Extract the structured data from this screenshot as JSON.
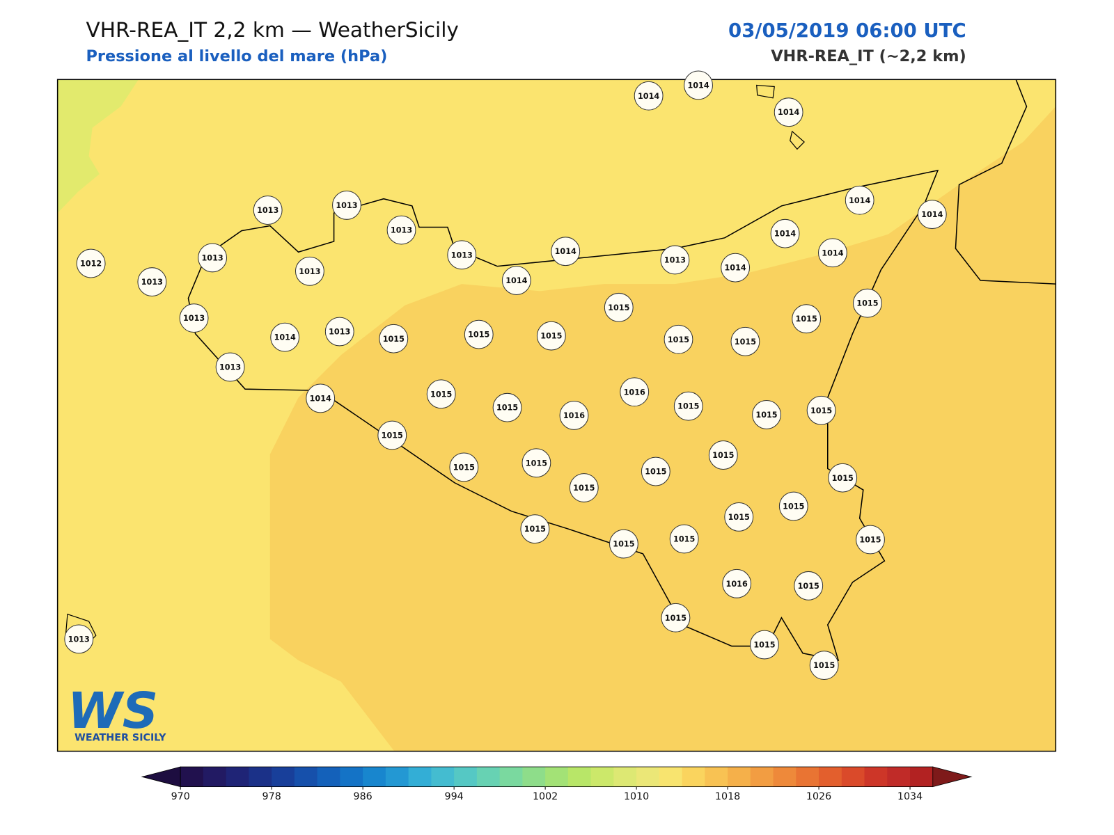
{
  "header": {
    "title": "VHR-REA_IT 2,2 km — WeatherSicily",
    "subtitle": "Pressione al livello del mare (hPa)",
    "datetime": "03/05/2019 06:00 UTC",
    "model": "VHR-REA_IT (~2,2 km)"
  },
  "stations": {
    "values": [
      1014,
      1014,
      1014,
      1013,
      1013,
      1013,
      1013,
      1014,
      1014,
      1013,
      1013,
      1012,
      1013,
      1013,
      1014,
      1013,
      1015,
      1015,
      1015,
      1015,
      1013,
      1014,
      1014,
      1014,
      1014,
      1014,
      1015,
      1015,
      1015,
      1015,
      1013,
      1014,
      1015,
      1015,
      1016,
      1016,
      1015,
      1015,
      1015,
      1015,
      1015,
      1015,
      1015,
      1015,
      1015,
      1015,
      1015,
      1015,
      1015,
      1015,
      1015,
      1015,
      1016,
      1015,
      1015,
      1015,
      1015,
      1013
    ]
  },
  "colorbar": {
    "lim": [
      970,
      1036
    ],
    "step": 2,
    "ticks": [
      970,
      978,
      986,
      994,
      1002,
      1010,
      1018,
      1026,
      1034
    ],
    "under_color": "#1d0d40",
    "over_color": "#7e1a1a",
    "colors": [
      "#21114e",
      "#221a63",
      "#1f2476",
      "#1b3188",
      "#183f9a",
      "#1650ab",
      "#1461ba",
      "#1473c6",
      "#1886ce",
      "#2398d3",
      "#33aed6",
      "#44bcd0",
      "#55c8c4",
      "#67d2b3",
      "#7ad99f",
      "#8edd8a",
      "#a3e276",
      "#b8e668",
      "#cce86a",
      "#dde873",
      "#ebe777",
      "#f8e46f",
      "#fad45e",
      "#f8c253",
      "#f5b04a",
      "#f29d42",
      "#ee893a",
      "#e97433",
      "#e35f2d",
      "#da4a2a",
      "#cd3628",
      "#c02b28",
      "#b22222"
    ]
  },
  "logo": {
    "mark": "WS",
    "text": "WEATHER SICILY"
  }
}
